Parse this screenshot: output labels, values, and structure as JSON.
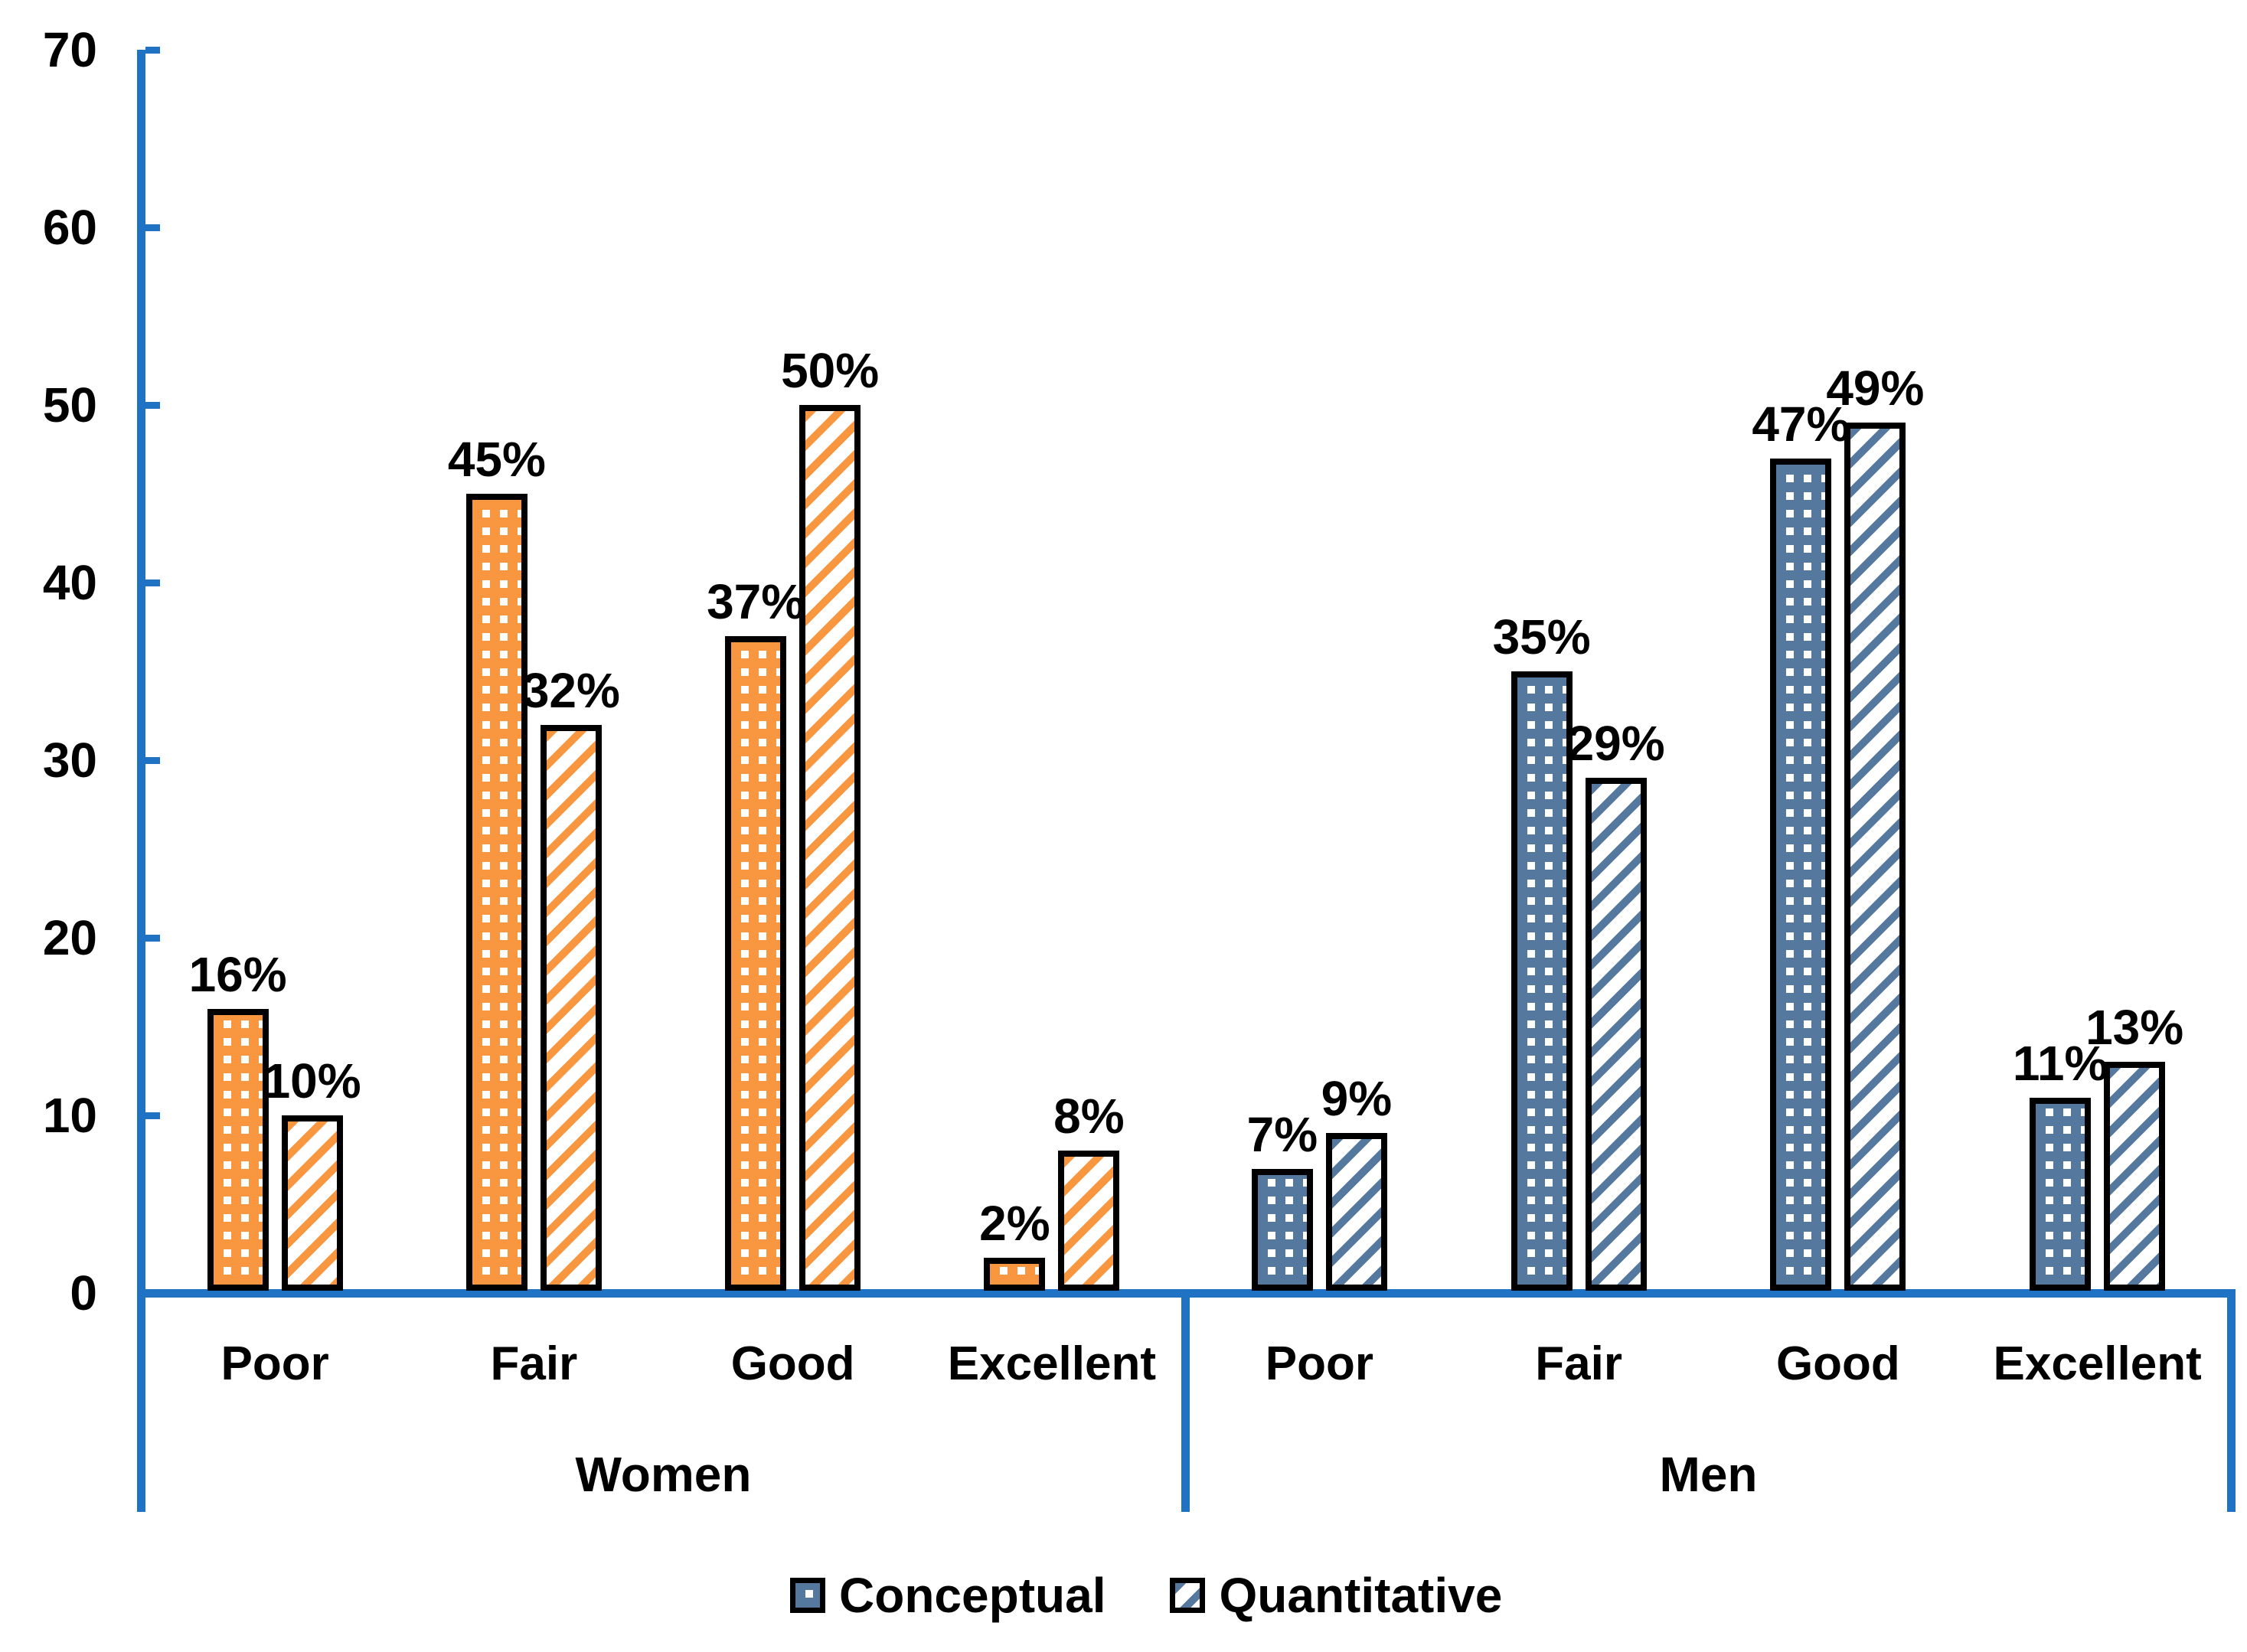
{
  "chart_data": {
    "type": "bar",
    "title": "",
    "value_unit": "percent",
    "ylim": [
      0,
      70
    ],
    "yticks": [
      0,
      10,
      20,
      30,
      40,
      50,
      60,
      70
    ],
    "grid": false,
    "legend_position": "bottom",
    "axis_color": "#2072C4",
    "bar_border_color": "#000000",
    "series_names": [
      "Conceptual",
      "Quantitative"
    ],
    "groups": [
      {
        "label": "Women",
        "color": "#F8973F",
        "categories": [
          "Poor",
          "Fair",
          "Good",
          "Excellent"
        ],
        "series": [
          {
            "name": "Conceptual",
            "pattern": "dots",
            "values": [
              16,
              45,
              37,
              2
            ],
            "labels": [
              "16%",
              "45%",
              "37%",
              "2%"
            ]
          },
          {
            "name": "Quantitative",
            "pattern": "hatch",
            "values": [
              10,
              32,
              50,
              8
            ],
            "labels": [
              "10%",
              "32%",
              "50%",
              "8%"
            ]
          }
        ]
      },
      {
        "label": "Men",
        "color": "#54789E",
        "categories": [
          "Poor",
          "Fair",
          "Good",
          "Excellent"
        ],
        "series": [
          {
            "name": "Conceptual",
            "pattern": "dots",
            "values": [
              7,
              35,
              47,
              11
            ],
            "labels": [
              "7%",
              "35%",
              "47%",
              "11%"
            ]
          },
          {
            "name": "Quantitative",
            "pattern": "hatch",
            "values": [
              9,
              29,
              49,
              13
            ],
            "labels": [
              "9%",
              "29%",
              "49%",
              "13%"
            ]
          }
        ]
      }
    ],
    "legend": [
      {
        "label": "Conceptual",
        "pattern": "dots",
        "color": "#54789E"
      },
      {
        "label": "Quantitative",
        "pattern": "hatch",
        "color": "#54789E"
      }
    ]
  }
}
